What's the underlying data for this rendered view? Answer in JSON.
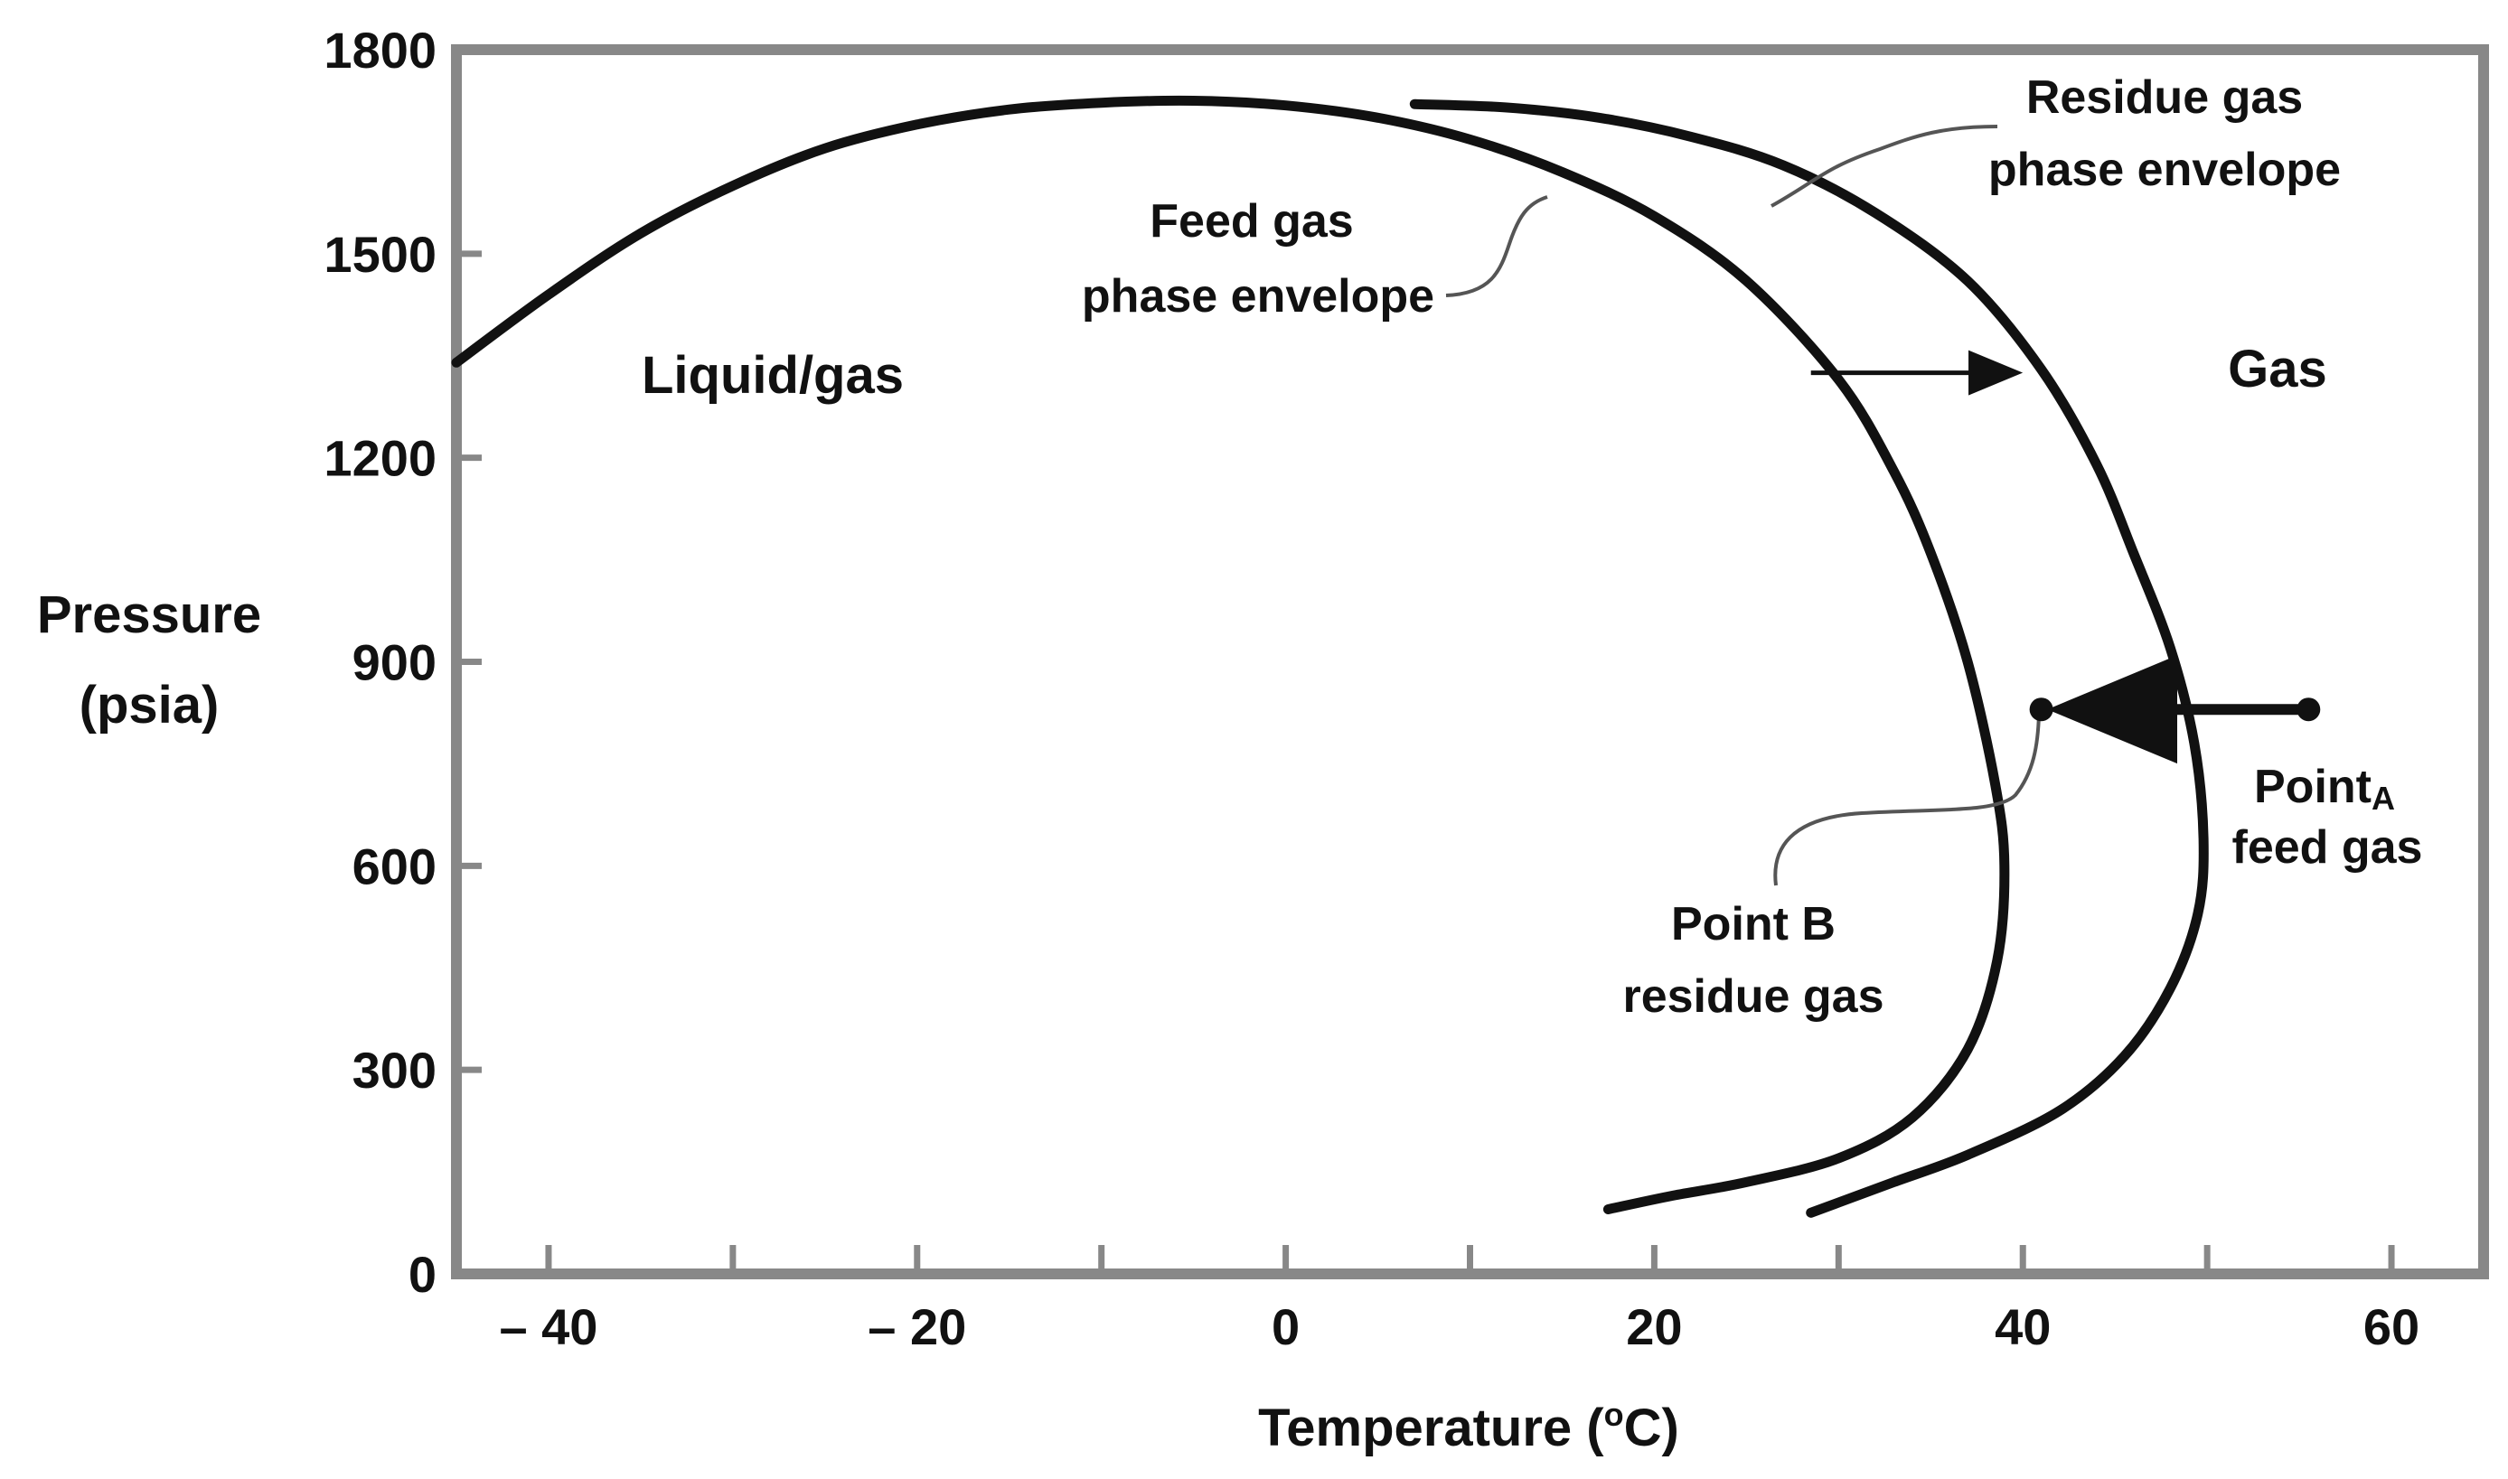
{
  "chart_data": {
    "type": "line",
    "title": "",
    "xlabel": "Temperature (",
    "xlabel_sup": "o",
    "xlabel_end": "C)",
    "ylabel_line1": "Pressure",
    "ylabel_line2": "(psia)",
    "xlim": [
      -45,
      65
    ],
    "ylim": [
      0,
      1800
    ],
    "x_ticks": [
      -40,
      -20,
      0,
      20,
      40,
      60
    ],
    "x_tick_labels": [
      "– 40",
      "– 20",
      "0",
      "20",
      "40",
      "60"
    ],
    "x_minor_ticks": [
      -30,
      -10,
      10,
      30,
      50
    ],
    "y_ticks": [
      0,
      300,
      600,
      900,
      1200,
      1500,
      1800
    ],
    "y_tick_labels": [
      "0",
      "300",
      "600",
      "900",
      "1200",
      "1500",
      "1800"
    ],
    "grid": false,
    "series": [
      {
        "name": "Feed gas phase envelope",
        "points": [
          [
            -45,
            1340
          ],
          [
            -40,
            1440
          ],
          [
            -35,
            1530
          ],
          [
            -30,
            1600
          ],
          [
            -25,
            1655
          ],
          [
            -20,
            1690
          ],
          [
            -15,
            1712
          ],
          [
            -10,
            1722
          ],
          [
            -5,
            1725
          ],
          [
            0,
            1718
          ],
          [
            5,
            1700
          ],
          [
            10,
            1668
          ],
          [
            15,
            1620
          ],
          [
            20,
            1555
          ],
          [
            25,
            1460
          ],
          [
            30,
            1315
          ],
          [
            33,
            1180
          ],
          [
            35,
            1060
          ],
          [
            37,
            900
          ],
          [
            38.5,
            720
          ],
          [
            39,
            600
          ],
          [
            38.6,
            460
          ],
          [
            37,
            330
          ],
          [
            34,
            230
          ],
          [
            30,
            170
          ],
          [
            25,
            135
          ],
          [
            21,
            115
          ],
          [
            17.5,
            95
          ]
        ]
      },
      {
        "name": "Residue gas phase envelope",
        "points": [
          [
            7,
            1720
          ],
          [
            12,
            1715
          ],
          [
            17,
            1700
          ],
          [
            22,
            1672
          ],
          [
            27,
            1630
          ],
          [
            32,
            1560
          ],
          [
            37,
            1460
          ],
          [
            41,
            1330
          ],
          [
            44,
            1190
          ],
          [
            46,
            1060
          ],
          [
            48,
            920
          ],
          [
            49.3,
            780
          ],
          [
            49.8,
            640
          ],
          [
            49.5,
            530
          ],
          [
            48,
            420
          ],
          [
            45.5,
            320
          ],
          [
            42,
            240
          ],
          [
            37,
            175
          ],
          [
            33,
            135
          ],
          [
            30,
            105
          ],
          [
            28.5,
            90
          ]
        ]
      }
    ],
    "arrows": [
      {
        "from": [
          28.5,
          1325
        ],
        "to": [
          39.5,
          1325
        ]
      },
      {
        "from": [
          55.5,
          830
        ],
        "to": [
          42.5,
          830
        ]
      }
    ],
    "points": [
      {
        "x": 41,
        "y": 830
      },
      {
        "x": 55.5,
        "y": 830
      }
    ],
    "annotations": {
      "region_liquid_gas": "Liquid/gas",
      "region_gas": "Gas",
      "feed_gas_line1": "Feed gas",
      "feed_gas_line2": "phase envelope",
      "residue_gas_line1": "Residue gas",
      "residue_gas_line2": "phase envelope",
      "point_b_line1": "Point B",
      "point_b_line2": "residue gas",
      "point_a_line1_main": "Point",
      "point_a_line1_sub": "A",
      "point_a_line2": "feed gas"
    },
    "colors": {
      "curve": "#111111",
      "axis": "#888888",
      "text": "#111111"
    }
  }
}
